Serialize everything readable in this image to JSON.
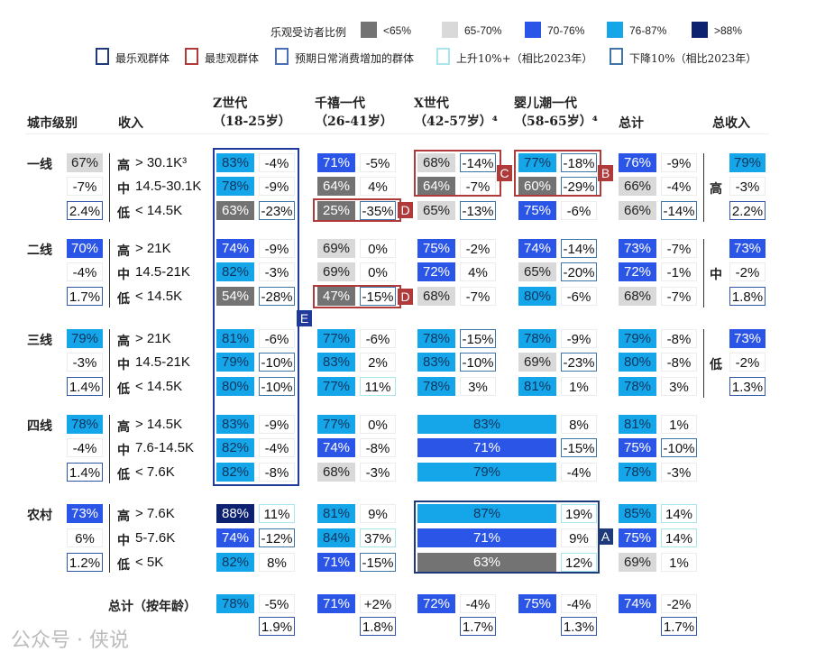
{
  "legend": {
    "title": "乐观受访者比例",
    "ranges": [
      {
        "label": "<65%",
        "color": "#737373"
      },
      {
        "label": "65-70%",
        "color": "#d9d9d9"
      },
      {
        "label": "70-76%",
        "color": "#2b55e6"
      },
      {
        "label": "76-87%",
        "color": "#14a6e8"
      },
      {
        "label": ">88%",
        "color": "#0c2270"
      }
    ],
    "boxes": [
      {
        "label": "最乐观群体",
        "color": "#1f3a7a"
      },
      {
        "label": "最悲观群体",
        "color": "#b03a3a"
      },
      {
        "label": "预期日常消费增加的群体",
        "color": "#4a6fb8"
      },
      {
        "label": "上升10%+（相比2023年）",
        "color": "#a8e6ec"
      },
      {
        "label": "下降10%（相比2023年）",
        "color": "#3f74a8"
      }
    ]
  },
  "headers": {
    "city": "城市级别",
    "income": "收入",
    "genz": [
      "Z世代",
      "（18-25岁）"
    ],
    "mill": [
      "千禧一代",
      "（26-41岁）"
    ],
    "genx": [
      "X世代",
      "（42-57岁）⁴"
    ],
    "boom": [
      "婴儿潮一代",
      "（58-65岁）⁴"
    ],
    "total": "总计",
    "total_income": "总收入"
  },
  "chart_data": {
    "type": "table",
    "color_codes": {
      "g": "<65%",
      "l": "65-70%",
      "b": "70-76%",
      "c": "76-87%",
      "n": ">88%"
    },
    "change_codes": {
      "d": "下降10%",
      "u": "上升10%+",
      "p": "预期日常消费增加"
    },
    "tiers": [
      {
        "name": "一线",
        "city": {
          "pct": "67%",
          "c": "l",
          "chg": "-7%",
          "spend": "2.4%"
        },
        "rows": [
          {
            "income": "高 > 30.1K³",
            "cells": [
              [
                "83%",
                "c",
                "-4%",
                ""
              ],
              [
                "71%",
                "b",
                "-5%",
                ""
              ],
              [
                "68%",
                "l",
                "-14%",
                "d"
              ],
              [
                "77%",
                "c",
                "-18%",
                "d"
              ],
              [
                "76%",
                "b",
                "-9%",
                ""
              ]
            ]
          },
          {
            "income": "中 14.5-30.1K",
            "cells": [
              [
                "78%",
                "c",
                "-9%",
                ""
              ],
              [
                "64%",
                "g",
                "4%",
                ""
              ],
              [
                "64%",
                "g",
                "-7%",
                ""
              ],
              [
                "60%",
                "g",
                "-29%",
                "d"
              ],
              [
                "66%",
                "l",
                "-4%",
                ""
              ]
            ]
          },
          {
            "income": "低 < 14.5K",
            "cells": [
              [
                "63%",
                "g",
                "-23%",
                "d"
              ],
              [
                "25%",
                "g",
                "-35%",
                "d"
              ],
              [
                "65%",
                "l",
                "-13%",
                "d"
              ],
              [
                "75%",
                "b",
                "-6%",
                ""
              ],
              [
                "66%",
                "l",
                "-14%",
                "d"
              ]
            ]
          }
        ]
      },
      {
        "name": "二线",
        "city": {
          "pct": "70%",
          "c": "b",
          "chg": "-4%",
          "spend": "1.7%"
        },
        "rows": [
          {
            "income": "高 > 21K",
            "cells": [
              [
                "74%",
                "b",
                "-9%",
                ""
              ],
              [
                "69%",
                "l",
                "0%",
                ""
              ],
              [
                "75%",
                "b",
                "-2%",
                ""
              ],
              [
                "74%",
                "b",
                "-14%",
                "d"
              ],
              [
                "73%",
                "b",
                "-7%",
                ""
              ]
            ]
          },
          {
            "income": "中 14.5-21K",
            "cells": [
              [
                "82%",
                "c",
                "-3%",
                ""
              ],
              [
                "69%",
                "l",
                "0%",
                ""
              ],
              [
                "72%",
                "b",
                "4%",
                ""
              ],
              [
                "65%",
                "l",
                "-20%",
                "d"
              ],
              [
                "72%",
                "b",
                "-1%",
                ""
              ]
            ]
          },
          {
            "income": "低 < 14.5K",
            "cells": [
              [
                "54%",
                "g",
                "-28%",
                "d"
              ],
              [
                "47%",
                "g",
                "-15%",
                "d"
              ],
              [
                "68%",
                "l",
                "-7%",
                ""
              ],
              [
                "80%",
                "c",
                "-6%",
                ""
              ],
              [
                "68%",
                "l",
                "-7%",
                ""
              ]
            ]
          }
        ]
      },
      {
        "name": "三线",
        "city": {
          "pct": "79%",
          "c": "c",
          "chg": "-3%",
          "spend": "1.4%"
        },
        "rows": [
          {
            "income": "高 > 21K",
            "cells": [
              [
                "81%",
                "c",
                "-6%",
                ""
              ],
              [
                "77%",
                "c",
                "-6%",
                ""
              ],
              [
                "78%",
                "c",
                "-15%",
                "d"
              ],
              [
                "78%",
                "c",
                "-9%",
                ""
              ],
              [
                "79%",
                "c",
                "-8%",
                ""
              ]
            ]
          },
          {
            "income": "中 14.5-21K",
            "cells": [
              [
                "79%",
                "c",
                "-10%",
                "d"
              ],
              [
                "83%",
                "c",
                "2%",
                ""
              ],
              [
                "83%",
                "c",
                "-10%",
                "d"
              ],
              [
                "69%",
                "l",
                "-23%",
                "d"
              ],
              [
                "80%",
                "c",
                "-8%",
                ""
              ]
            ]
          },
          {
            "income": "低 < 14.5K",
            "cells": [
              [
                "80%",
                "c",
                "-10%",
                "d"
              ],
              [
                "77%",
                "c",
                "11%",
                "u"
              ],
              [
                "78%",
                "c",
                "3%",
                ""
              ],
              [
                "81%",
                "c",
                "1%",
                ""
              ],
              [
                "78%",
                "c",
                "3%",
                ""
              ]
            ]
          }
        ]
      },
      {
        "name": "四线",
        "city": {
          "pct": "78%",
          "c": "c",
          "chg": "-4%",
          "spend": "1.4%"
        },
        "merged_xb": true,
        "rows": [
          {
            "income": "高 > 14.5K",
            "cells": [
              [
                "83%",
                "c",
                "-9%",
                ""
              ],
              [
                "77%",
                "c",
                "0%",
                ""
              ],
              [
                "83%",
                "c",
                "8%",
                ""
              ],
              [
                "81%",
                "c",
                "1%",
                ""
              ]
            ]
          },
          {
            "income": "中 7.6-14.5K",
            "cells": [
              [
                "82%",
                "c",
                "-4%",
                ""
              ],
              [
                "74%",
                "b",
                "-8%",
                ""
              ],
              [
                "71%",
                "b",
                "-15%",
                "d"
              ],
              [
                "75%",
                "b",
                "-10%",
                "d"
              ]
            ]
          },
          {
            "income": "低 < 7.6K",
            "cells": [
              [
                "82%",
                "c",
                "-8%",
                ""
              ],
              [
                "68%",
                "l",
                "-3%",
                ""
              ],
              [
                "79%",
                "c",
                "-4%",
                ""
              ],
              [
                "78%",
                "c",
                "-3%",
                ""
              ]
            ]
          }
        ]
      },
      {
        "name": "农村",
        "city": {
          "pct": "73%",
          "c": "b",
          "chg": "6%",
          "spend": "1.2%"
        },
        "merged_xb": true,
        "rows": [
          {
            "income": "高 > 7.6K",
            "cells": [
              [
                "88%",
                "n",
                "11%",
                "u"
              ],
              [
                "81%",
                "c",
                "9%",
                ""
              ],
              [
                "87%",
                "c",
                "19%",
                "u"
              ],
              [
                "85%",
                "c",
                "14%",
                "u"
              ]
            ]
          },
          {
            "income": "中 5-7.6K",
            "cells": [
              [
                "74%",
                "b",
                "-12%",
                "d"
              ],
              [
                "84%",
                "c",
                "37%",
                "u"
              ],
              [
                "71%",
                "b",
                "9%",
                ""
              ],
              [
                "75%",
                "b",
                "14%",
                "u"
              ]
            ]
          },
          {
            "income": "低 < 5K",
            "cells": [
              [
                "82%",
                "c",
                "8%",
                ""
              ],
              [
                "71%",
                "b",
                "-15%",
                "d"
              ],
              [
                "63%",
                "g",
                "12%",
                "u"
              ],
              [
                "69%",
                "l",
                "1%",
                ""
              ]
            ]
          }
        ]
      }
    ],
    "total_income": [
      {
        "level": "高",
        "pct": "79%",
        "c": "c",
        "chg": "-3%",
        "spend": "2.2%"
      },
      {
        "level": "中",
        "pct": "73%",
        "c": "b",
        "chg": "-2%",
        "spend": "1.8%"
      },
      {
        "level": "低",
        "pct": "73%",
        "c": "b",
        "chg": "-2%",
        "spend": "1.3%"
      }
    ],
    "by_age": {
      "label": "总计（按年龄）",
      "cells": [
        [
          "78%",
          "c",
          "-5%",
          "1.9%"
        ],
        [
          "71%",
          "b",
          "+2%",
          "1.8%"
        ],
        [
          "72%",
          "b",
          "-4%",
          "1.7%"
        ],
        [
          "75%",
          "b",
          "-4%",
          "1.3%"
        ],
        [
          "74%",
          "b",
          "-2%",
          "1.7%"
        ]
      ]
    }
  },
  "annotations": {
    "A": "A",
    "B": "B",
    "C": "C",
    "D": "D",
    "E": "E"
  },
  "watermark": "公众号 · 侠说"
}
